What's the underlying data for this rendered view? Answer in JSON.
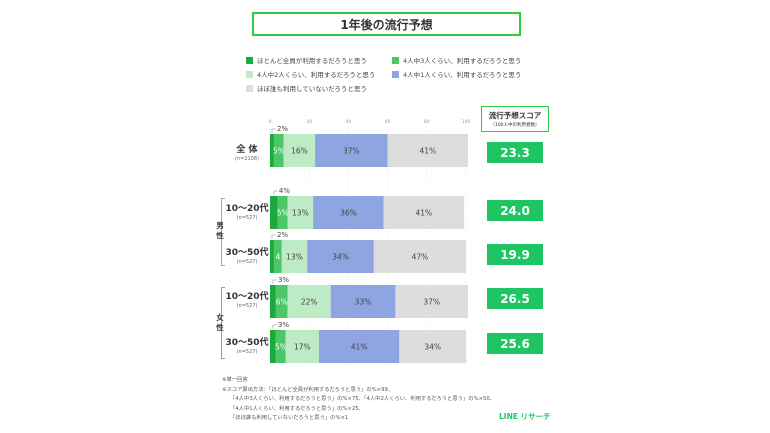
{
  "title": "1年後の流行予想",
  "legend": [
    {
      "label": "ほとんど全員が利用するだろうと思う",
      "color": "#1aab3c"
    },
    {
      "label": "4人中3人くらい、利用するだろうと思う",
      "color": "#4cc768"
    },
    {
      "label": "4人中2人くらい、利用するだろうと思う",
      "color": "#bdebc6"
    },
    {
      "label": "4人中1人くらい、利用するだろうと思う",
      "color": "#8fa5e2"
    },
    {
      "label": "ほぼ誰も利用していないだろうと思う",
      "color": "#dddddd"
    }
  ],
  "score_header": {
    "title": "流行予想スコア",
    "subtitle": "（100人中の利用者数）"
  },
  "groups": {
    "male": "男性",
    "female": "女性",
    "male_color": "#8fa5e2",
    "female_color": "#e87a7a"
  },
  "notes": [
    "※単一回答",
    "※スコア算出方法：「ほとんど全員が利用するだろうと思う」の%×99、",
    "「4人中3人くらい、利用するだろうと思う」の%×75、「4人中2人くらい、利用するだろうと思う」の%×50、",
    "「4人中1人くらい、利用するだろうと思う」の%×25、",
    "「ほぼ誰も利用していないだろうと思う」の%×1"
  ],
  "brand": "LINE リサーチ",
  "chart_data": {
    "type": "bar",
    "orientation": "horizontal",
    "stacked": true,
    "xlim": [
      0,
      100
    ],
    "x_ticks": [
      "0",
      "20",
      "40",
      "60",
      "80",
      "100"
    ],
    "series": [
      {
        "name": "ほとんど全員が利用するだろうと思う",
        "color": "#1aab3c"
      },
      {
        "name": "4人中3人くらい、利用するだろうと思う",
        "color": "#4cc768"
      },
      {
        "name": "4人中2人くらい、利用するだろうと思う",
        "color": "#bdebc6"
      },
      {
        "name": "4人中1人くらい、利用するだろうと思う",
        "color": "#8fa5e2"
      },
      {
        "name": "ほぼ誰も利用していないだろうと思う",
        "color": "#dddddd"
      }
    ],
    "rows": [
      {
        "label": "全 体",
        "sub": "(n=2108)",
        "values": [
          2,
          5,
          16,
          37,
          41
        ],
        "labels": [
          "2%",
          "5%",
          "16%",
          "37%",
          "41%"
        ],
        "score": "23.3"
      },
      {
        "label": "10〜20代",
        "sub": "(n=527)",
        "values": [
          4,
          5,
          13,
          36,
          41
        ],
        "labels": [
          "4%",
          "5%",
          "13%",
          "36%",
          "41%"
        ],
        "score": "24.0"
      },
      {
        "label": "30〜50代",
        "sub": "(n=527)",
        "values": [
          2,
          4,
          13,
          34,
          47
        ],
        "labels": [
          "2%",
          "4",
          "13%",
          "34%",
          "47%"
        ],
        "score": "19.9"
      },
      {
        "label": "10〜20代",
        "sub": "(n=527)",
        "values": [
          3,
          6,
          22,
          33,
          37
        ],
        "labels": [
          "3%",
          "6%",
          "22%",
          "33%",
          "37%"
        ],
        "score": "26.5"
      },
      {
        "label": "30〜50代",
        "sub": "(n=527)",
        "values": [
          3,
          5,
          17,
          41,
          34
        ],
        "labels": [
          "3%",
          "5%",
          "17%",
          "41%",
          "34%"
        ],
        "score": "25.6"
      }
    ]
  }
}
